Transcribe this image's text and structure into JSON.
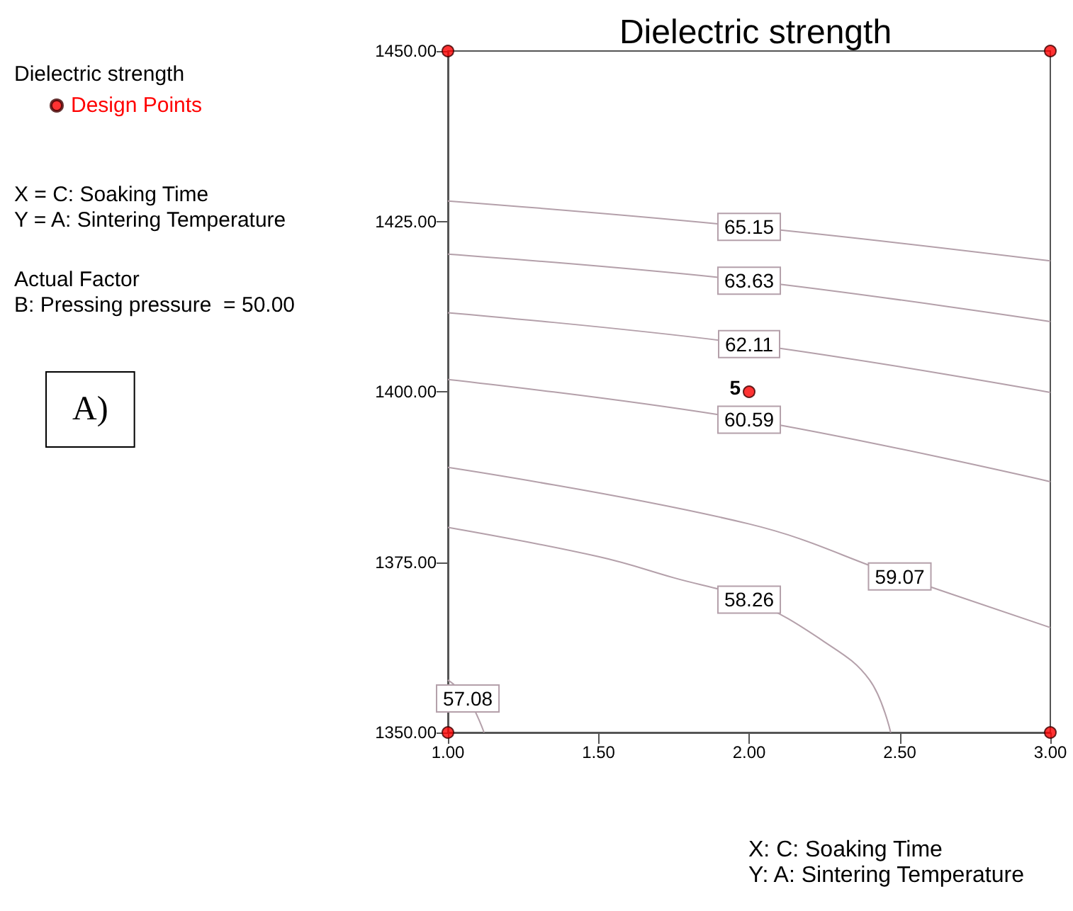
{
  "chart_data": {
    "type": "line",
    "title": "Dielectric strength",
    "xlabel": "X: C: Soaking Time",
    "legend_title": "Dielectric strength",
    "legend": "left",
    "annotations": [
      "X = C: Soaking Time",
      "Y = A: Sintering Temperature",
      "Actual Factor",
      "B: Pressing pressure  = 50.00",
      "A)",
      "Y: A: Sintering Temperature",
      {
        "text": "5",
        "x": 2,
        "y": 1400
      }
    ],
    "xlim": [
      1,
      3
    ],
    "xticks": [
      {
        "value": 1,
        "label": "1.00"
      },
      {
        "value": 1.5,
        "label": "1.50"
      },
      {
        "value": 2,
        "label": "2.00"
      },
      {
        "value": 2.5,
        "label": "2.50"
      },
      {
        "value": 3,
        "label": "3.00"
      }
    ],
    "ylim": [
      1350,
      1450
    ],
    "yticks": [
      {
        "value": 1350,
        "label": "1350.00"
      },
      {
        "value": 1375,
        "label": "1375.00"
      },
      {
        "value": 1400,
        "label": "1400.00"
      },
      {
        "value": 1425,
        "label": "1425.00"
      },
      {
        "value": 1450,
        "label": "1450.00"
      }
    ],
    "grid": false,
    "marker": "none",
    "series": [
      {
        "name": "65.15",
        "color": "#b4a0aa",
        "x": [
          1,
          2,
          3
        ],
        "values": [
          1428.0,
          1424.2,
          1419.2
        ]
      },
      {
        "name": "63.63",
        "color": "#b4a0aa",
        "x": [
          1,
          2,
          3
        ],
        "values": [
          1420.2,
          1416.3,
          1410.3
        ]
      },
      {
        "name": "62.11",
        "color": "#b4a0aa",
        "x": [
          1,
          2,
          3
        ],
        "values": [
          1411.6,
          1407.0,
          1399.9
        ]
      },
      {
        "name": "60.59",
        "color": "#b4a0aa",
        "x": [
          1,
          2,
          3
        ],
        "values": [
          1401.8,
          1395.9,
          1386.8
        ]
      },
      {
        "name": "59.07",
        "color": "#b4a0aa",
        "x": [
          1,
          2,
          2.5,
          3
        ],
        "values": [
          1388.9,
          1380.6,
          1372.9,
          1365.4
        ]
      },
      {
        "name": "58.26",
        "color": "#b4a0aa",
        "x": [
          1,
          1.5,
          1.75,
          2,
          2.25,
          2.4,
          2.47
        ],
        "values": [
          1380.1,
          1375.8,
          1372.7,
          1369.5,
          1363.3,
          1357.7,
          1350
        ]
      },
      {
        "name": "57.08",
        "color": "#b4a0aa",
        "x": [
          1,
          1.066,
          1.12
        ],
        "values": [
          1357.7,
          1355.0,
          1350
        ]
      },
      {
        "name": "Design Points",
        "type": "scatter",
        "marker": "circle",
        "color": "#ff0000",
        "x": [
          1,
          1,
          2,
          3,
          3
        ],
        "values": [
          1350,
          1450,
          1400,
          1350,
          1450
        ]
      }
    ]
  }
}
